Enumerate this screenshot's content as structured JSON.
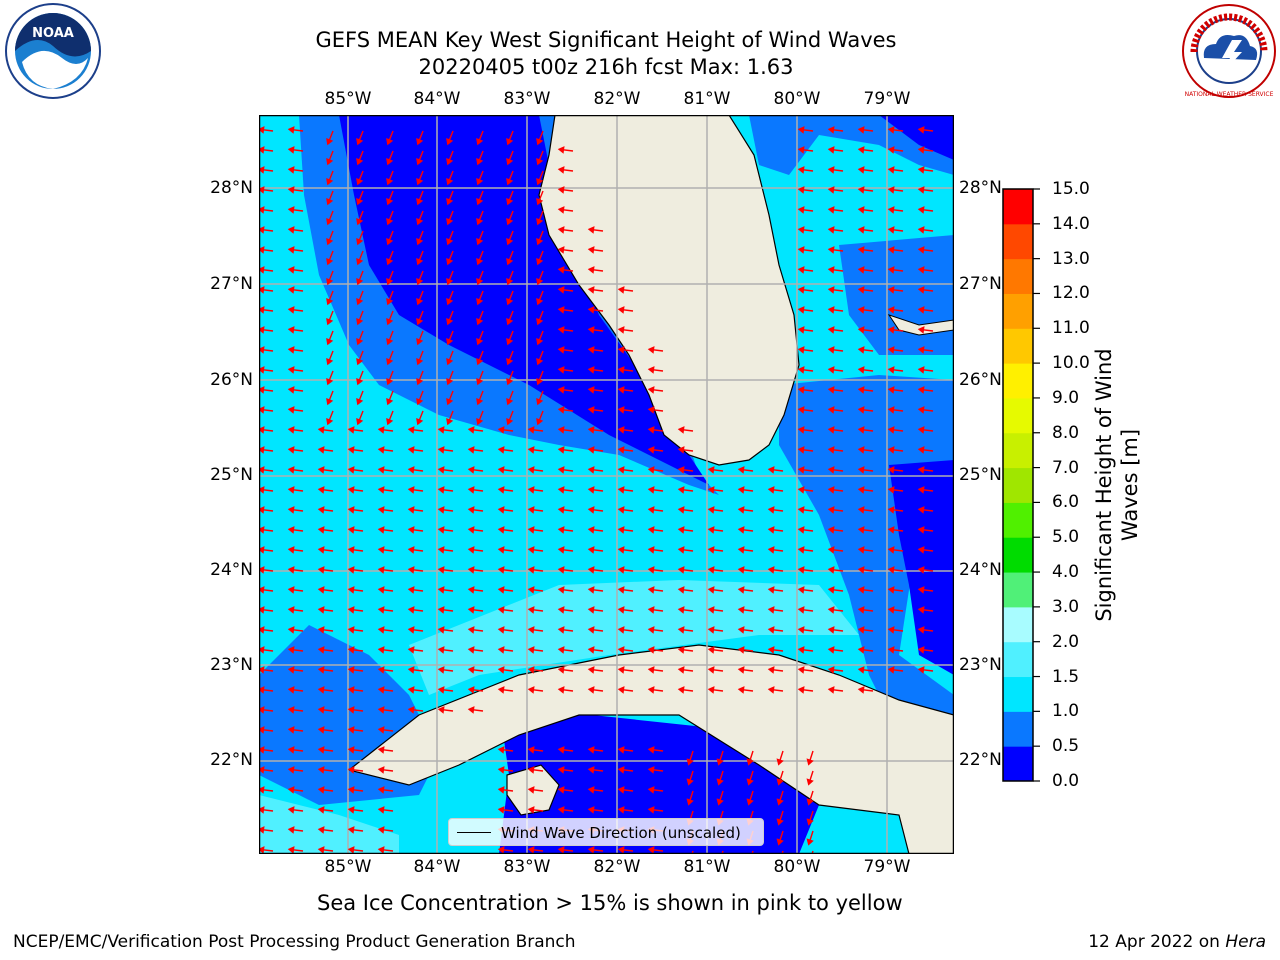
{
  "title": {
    "line1": "GEFS MEAN Key West Significant Height of Wind Waves",
    "line2": "20220405 t00z 216h fcst   Max: 1.63"
  },
  "logos": {
    "left": "NOAA",
    "right": "NATIONAL WEATHER SERVICE"
  },
  "map": {
    "lon_labels": [
      "85°W",
      "84°W",
      "83°W",
      "82°W",
      "81°W",
      "80°W",
      "79°W"
    ],
    "lat_labels": [
      "28°N",
      "27°N",
      "26°N",
      "25°N",
      "24°N",
      "23°N",
      "22°N"
    ],
    "land_color": "#efeddf",
    "arrow_color": "#ff0000",
    "grid_color": "#b0b0b0",
    "legend_label": "Wind Wave Direction (unscaled)"
  },
  "colorbar": {
    "label": "Significant Height of Wind Waves [m]",
    "tick_labels": [
      "0.0",
      "0.5",
      "1.0",
      "1.5",
      "2.0",
      "3.0",
      "4.0",
      "5.0",
      "6.0",
      "7.0",
      "8.0",
      "9.0",
      "10.0",
      "11.0",
      "12.0",
      "13.0",
      "14.0",
      "15.0"
    ],
    "colors": [
      "#0000ff",
      "#0a78ff",
      "#00e6ff",
      "#50f0ff",
      "#a8fcff",
      "#50f078",
      "#00dc00",
      "#50f000",
      "#a0e600",
      "#c8f000",
      "#e6fa00",
      "#fff000",
      "#ffc800",
      "#ffa000",
      "#ff7800",
      "#ff4800",
      "#ff0000"
    ]
  },
  "caption": "Sea Ice Concentration > 15% is shown in pink to yellow",
  "footer": {
    "left": "NCEP/EMC/Verification Post Processing Product Generation Branch",
    "date": "12 Apr 2022 on ",
    "host": "Hera"
  }
}
